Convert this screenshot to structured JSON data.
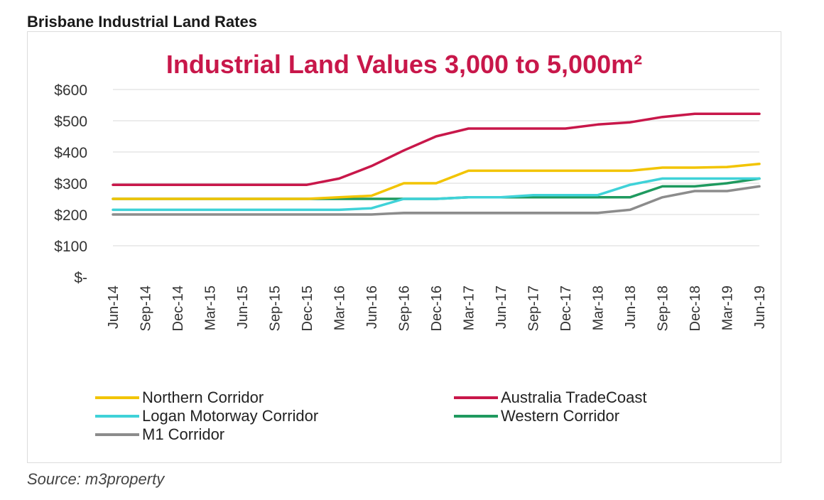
{
  "heading": "Brisbane Industrial Land Rates",
  "source": "Source: m3property",
  "colors": {
    "title": "#c8174a",
    "grid": "#d9d9d9",
    "axis_text": "#333333"
  },
  "chart_data": {
    "type": "line",
    "title": "Industrial Land Values 3,000 to 5,000m²",
    "xlabel": "",
    "ylabel": "",
    "ylim": [
      0,
      600
    ],
    "y_ticks": [
      {
        "value": 0,
        "label": "$-"
      },
      {
        "value": 100,
        "label": "$100"
      },
      {
        "value": 200,
        "label": "$200"
      },
      {
        "value": 300,
        "label": "$300"
      },
      {
        "value": 400,
        "label": "$400"
      },
      {
        "value": 500,
        "label": "$500"
      },
      {
        "value": 600,
        "label": "$600"
      }
    ],
    "grid": true,
    "legend_position": "bottom",
    "x_labels": [
      "Jun-14",
      "Sep-14",
      "Dec-14",
      "Mar-15",
      "Jun-15",
      "Sep-15",
      "Dec-15",
      "Mar-16",
      "Jun-16",
      "Sep-16",
      "Dec-16",
      "Mar-17",
      "Jun-17",
      "Sep-17",
      "Dec-17",
      "Mar-18",
      "Jun-18",
      "Sep-18",
      "Dec-18",
      "Mar-19",
      "Jun-19"
    ],
    "series": [
      {
        "name": "Northern Corridor",
        "color": "#f2c400",
        "values": [
          250,
          250,
          250,
          250,
          250,
          250,
          250,
          255,
          260,
          300,
          300,
          340,
          340,
          340,
          340,
          340,
          340,
          350,
          350,
          352,
          362
        ]
      },
      {
        "name": "Australia TradeCoast",
        "color": "#c8174a",
        "values": [
          295,
          295,
          295,
          295,
          295,
          295,
          295,
          315,
          355,
          405,
          450,
          475,
          475,
          475,
          475,
          488,
          495,
          512,
          522,
          522,
          522
        ]
      },
      {
        "name": "Logan Motorway Corridor",
        "color": "#3fd2d8",
        "values": [
          215,
          215,
          215,
          215,
          215,
          215,
          215,
          215,
          220,
          250,
          250,
          255,
          255,
          262,
          262,
          262,
          295,
          315,
          315,
          315,
          315
        ]
      },
      {
        "name": "Western Corridor",
        "color": "#1f9a5f",
        "values": [
          250,
          250,
          250,
          250,
          250,
          250,
          250,
          250,
          250,
          250,
          250,
          255,
          255,
          255,
          255,
          255,
          255,
          290,
          290,
          300,
          315
        ]
      },
      {
        "name": "M1 Corridor",
        "color": "#8c8c8c",
        "values": [
          200,
          200,
          200,
          200,
          200,
          200,
          200,
          200,
          200,
          205,
          205,
          205,
          205,
          205,
          205,
          205,
          215,
          255,
          275,
          275,
          290
        ]
      }
    ]
  }
}
